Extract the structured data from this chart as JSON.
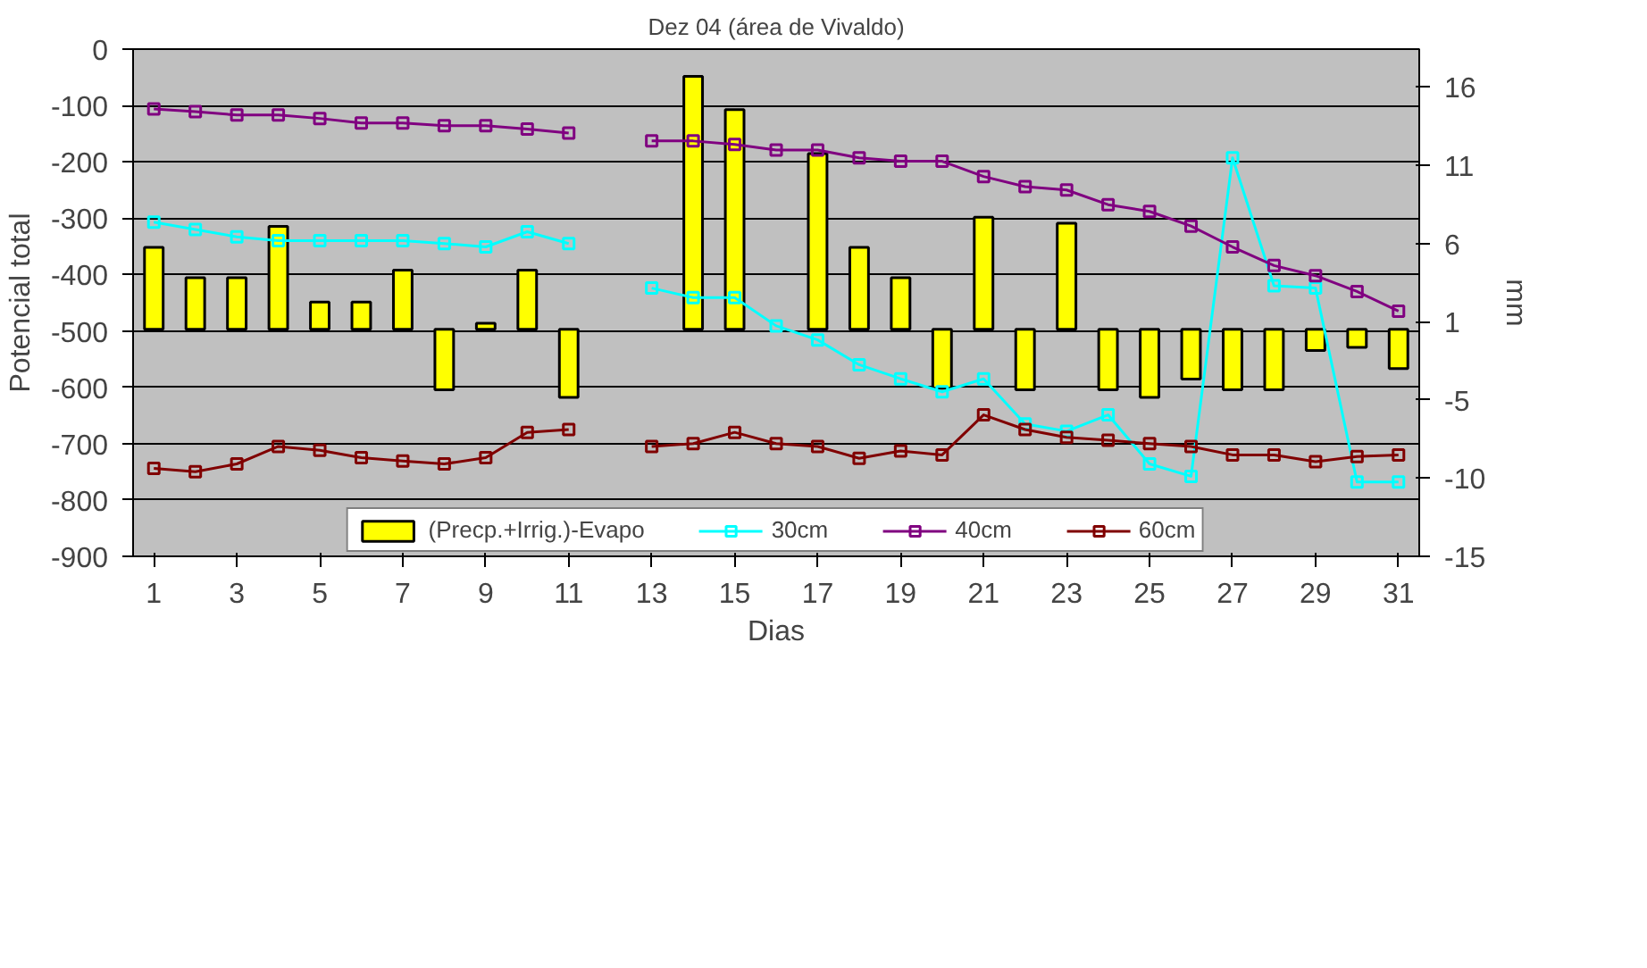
{
  "chart_data": {
    "type": "bar",
    "title": "Dez 04 (área de Vivaldo)",
    "xlabel": "Dias",
    "ylabel": "Potencial total",
    "y2label": "mm",
    "x": [
      1,
      2,
      3,
      4,
      5,
      6,
      7,
      8,
      9,
      10,
      11,
      12,
      13,
      14,
      15,
      16,
      17,
      18,
      19,
      20,
      21,
      22,
      23,
      24,
      25,
      26,
      27,
      28,
      29,
      30,
      31
    ],
    "xlim": [
      0.5,
      31.5
    ],
    "xticks": [
      1,
      3,
      5,
      7,
      9,
      11,
      13,
      15,
      17,
      19,
      21,
      23,
      25,
      27,
      29,
      31
    ],
    "ylim": [
      -900,
      0
    ],
    "yticks": [
      0,
      -100,
      -200,
      -300,
      -400,
      -500,
      -600,
      -700,
      -800,
      -900
    ],
    "y2lim": [
      -15,
      18.5
    ],
    "y2ticks": [
      {
        "value": -15,
        "label": "-15"
      },
      {
        "value": -9.83,
        "label": "-10"
      },
      {
        "value": -4.67,
        "label": "-5"
      },
      {
        "value": 0.5,
        "label": "1"
      },
      {
        "value": 5.67,
        "label": "6"
      },
      {
        "value": 10.83,
        "label": "11"
      },
      {
        "value": 16,
        "label": "16"
      }
    ],
    "grid": "y",
    "legend": "bottom",
    "marker": "square",
    "line_style": "solid",
    "series": [
      {
        "name": "(Precp.+Irrig.)-Evapo",
        "axis": "y2",
        "color": "#ffff00",
        "values": [
          5.4,
          3.4,
          3.4,
          6.8,
          1.8,
          1.8,
          3.9,
          -4.0,
          0.4,
          3.9,
          -4.5,
          null,
          null,
          16.7,
          14.5,
          null,
          11.6,
          5.4,
          3.4,
          -3.9,
          7.4,
          -4.0,
          7.0,
          -4.0,
          -4.5,
          -3.3,
          -4.0,
          -4.0,
          -1.4,
          -1.2,
          -2.6
        ]
      },
      {
        "name": "30cm",
        "type": "line",
        "color": "#00ffff",
        "values": [
          -307,
          -320,
          -333,
          -340,
          -340,
          -340,
          -340,
          -345,
          -351,
          -324,
          -345,
          null,
          -424,
          -441,
          -441,
          -491,
          -516,
          -560,
          -585,
          -608,
          -585,
          -665,
          -678,
          -649,
          -736,
          -758,
          -193,
          -420,
          -424,
          -768,
          -768
        ]
      },
      {
        "name": "40cm",
        "type": "line",
        "color": "#800080",
        "values": [
          -106,
          -111,
          -117,
          -117,
          -123,
          -131,
          -131,
          -136,
          -136,
          -142,
          -149,
          null,
          -163,
          -163,
          -169,
          -179,
          -179,
          -193,
          -199,
          -199,
          -226,
          -244,
          -250,
          -276,
          -288,
          -314,
          -351,
          -384,
          -402,
          -430,
          -465
        ]
      },
      {
        "name": "60cm",
        "type": "line",
        "color": "#800000",
        "values": [
          -744,
          -750,
          -736,
          -705,
          -712,
          -725,
          -731,
          -736,
          -725,
          -680,
          -675,
          null,
          -705,
          -700,
          -680,
          -700,
          -705,
          -726,
          -713,
          -720,
          -649,
          -675,
          -689,
          -694,
          -700,
          -705,
          -720,
          -720,
          -732,
          -723,
          -720
        ]
      }
    ]
  }
}
